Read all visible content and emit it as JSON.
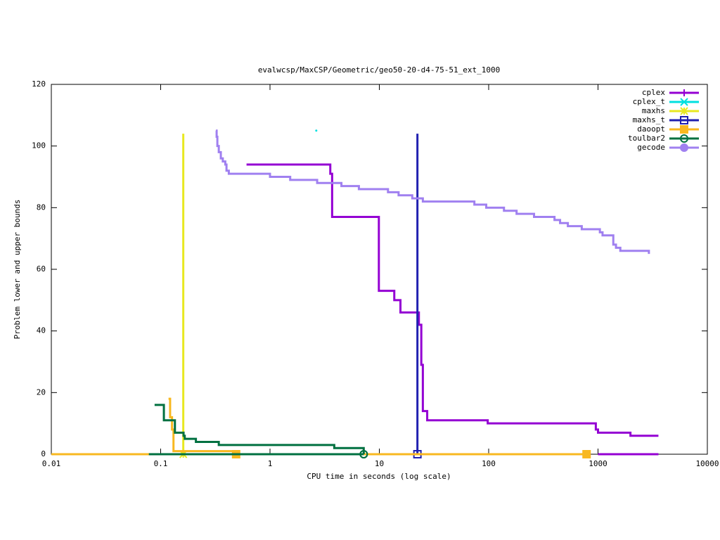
{
  "chart_data": {
    "type": "line",
    "title": "evalwcsp/MaxCSP/Geometric/geo50-20-d4-75-51_ext_1000",
    "x_label": "CPU time in seconds (log scale)",
    "y_label": "Problem lower and upper bounds",
    "x_log": true,
    "steps": true,
    "xlim": [
      0.01,
      10000
    ],
    "xticks": [
      0.01,
      0.1,
      1,
      10,
      100,
      1000,
      10000
    ],
    "ylim": [
      0,
      120
    ],
    "yticks": [
      0,
      20,
      40,
      60,
      80,
      100,
      120
    ],
    "legend": "top-right",
    "series": [
      {
        "name": "cplex",
        "color": "#9400d3",
        "marker": "plus",
        "end_markers": false,
        "x": [
          0.61,
          3.56,
          3.7,
          9.9,
          13.7,
          15.6,
          23,
          24.2,
          25,
          27.4,
          98,
          955,
          1000,
          1980,
          3570,
          3570,
          1000,
          3570
        ],
        "values": [
          94,
          91,
          77,
          53,
          50,
          46,
          42,
          29,
          14,
          11,
          10,
          8,
          7,
          6,
          6,
          null,
          0,
          0
        ]
      },
      {
        "name": "cplex_t",
        "color": "#00e0e0",
        "marker": "cross",
        "end_markers": false,
        "x": [
          2.65
        ],
        "values": [
          105
        ]
      },
      {
        "name": "maxhs",
        "color": "#e8e820",
        "marker": "star",
        "end_markers": true,
        "x": [
          0.161,
          0.161
        ],
        "values": [
          104,
          0
        ]
      },
      {
        "name": "maxhs_t",
        "color": "#2020b0",
        "marker": "square",
        "end_markers": true,
        "x": [
          22.3,
          22.3
        ],
        "values": [
          104,
          0
        ]
      },
      {
        "name": "daoopt",
        "color": "#f8b820",
        "marker": "filled-square",
        "end_markers": true,
        "x": [
          0.118,
          0.122,
          0.127,
          0.131,
          0.49,
          0.49,
          786,
          786,
          0.01,
          0.49
        ],
        "values": [
          18,
          12,
          8,
          1,
          1,
          0,
          0,
          null,
          0,
          0
        ]
      },
      {
        "name": "toulbar2",
        "color": "#007040",
        "marker": "circle",
        "end_markers": true,
        "x": [
          0.088,
          0.107,
          0.135,
          0.162,
          0.166,
          0.21,
          0.34,
          3.87,
          7.2,
          7.2,
          7.2,
          0.078,
          7.2
        ],
        "values": [
          16,
          11,
          7,
          6,
          5,
          4,
          3,
          2,
          2,
          0,
          null,
          0,
          0
        ]
      },
      {
        "name": "gecode",
        "color": "#a080f0",
        "marker": "filled-circle",
        "end_markers": false,
        "x": [
          0.32,
          0.325,
          0.33,
          0.34,
          0.355,
          0.37,
          0.39,
          0.4,
          0.42,
          1.0,
          1.53,
          2.7,
          4.5,
          6.5,
          12,
          15,
          20,
          25,
          74,
          95,
          138,
          180,
          260,
          400,
          450,
          530,
          710,
          1040,
          1100,
          1380,
          1460,
          1600,
          2920,
          2920
        ],
        "values": [
          105,
          103,
          100,
          98,
          96,
          95,
          94,
          92,
          91,
          90,
          89,
          88,
          87,
          86,
          85,
          84,
          83,
          82,
          81,
          80,
          79,
          78,
          77,
          76,
          75,
          74,
          73,
          72,
          71,
          68,
          67,
          66,
          66,
          65
        ]
      }
    ]
  }
}
